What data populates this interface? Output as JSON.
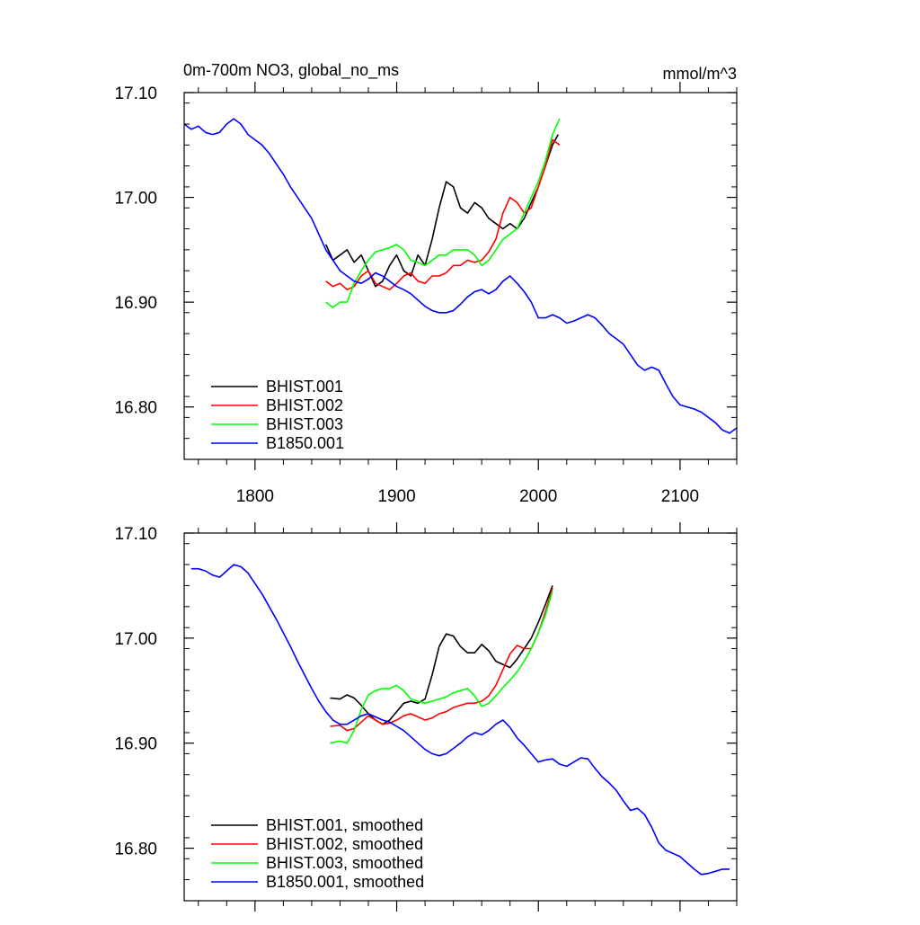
{
  "chart_data": [
    {
      "type": "line",
      "title": "0m-700m NO3, global_no_ms",
      "units": "mmol/m^3",
      "xlim": [
        1750,
        2140
      ],
      "ylim": [
        16.75,
        17.1
      ],
      "x_ticks": [
        1800,
        1900,
        2000,
        2100
      ],
      "x_tick_labels": [
        "1800",
        "1900",
        "2000",
        "2100"
      ],
      "y_ticks": [
        16.8,
        16.9,
        17.0,
        17.1
      ],
      "y_tick_labels": [
        "16.80",
        "16.90",
        "17.00",
        "17.10"
      ],
      "legend_position": "bottom-left",
      "series": [
        {
          "name": "BHIST.001",
          "color": "#000000",
          "x": [
            1850,
            1855,
            1860,
            1865,
            1870,
            1875,
            1880,
            1885,
            1890,
            1895,
            1900,
            1905,
            1910,
            1915,
            1920,
            1925,
            1930,
            1935,
            1940,
            1945,
            1950,
            1955,
            1960,
            1965,
            1970,
            1975,
            1980,
            1985,
            1990,
            1995,
            2000,
            2005,
            2010,
            2014
          ],
          "y": [
            16.955,
            16.94,
            16.945,
            16.95,
            16.938,
            16.945,
            16.93,
            16.915,
            16.92,
            16.935,
            16.945,
            16.93,
            16.925,
            16.945,
            16.935,
            16.96,
            16.99,
            17.015,
            17.01,
            16.99,
            16.985,
            16.995,
            16.99,
            16.98,
            16.975,
            16.97,
            16.975,
            16.97,
            16.98,
            16.995,
            17.01,
            17.03,
            17.05,
            17.06
          ]
        },
        {
          "name": "BHIST.002",
          "color": "#ff0000",
          "x": [
            1850,
            1855,
            1860,
            1865,
            1870,
            1875,
            1880,
            1885,
            1890,
            1895,
            1900,
            1905,
            1910,
            1915,
            1920,
            1925,
            1930,
            1935,
            1940,
            1945,
            1950,
            1955,
            1960,
            1965,
            1970,
            1975,
            1980,
            1985,
            1990,
            1995,
            2000,
            2005,
            2010,
            2015
          ],
          "y": [
            16.92,
            16.915,
            16.918,
            16.912,
            16.915,
            16.925,
            16.93,
            16.918,
            16.915,
            16.912,
            16.918,
            16.925,
            16.928,
            16.92,
            16.918,
            16.925,
            16.925,
            16.928,
            16.935,
            16.935,
            16.94,
            16.938,
            16.94,
            16.948,
            16.96,
            16.985,
            17.0,
            16.995,
            16.985,
            16.99,
            17.01,
            17.03,
            17.055,
            17.05
          ]
        },
        {
          "name": "BHIST.003",
          "color": "#00ff00",
          "x": [
            1850,
            1855,
            1860,
            1865,
            1870,
            1875,
            1880,
            1885,
            1890,
            1895,
            1900,
            1905,
            1910,
            1915,
            1920,
            1925,
            1930,
            1935,
            1940,
            1945,
            1950,
            1955,
            1960,
            1965,
            1970,
            1975,
            1980,
            1985,
            1990,
            1995,
            2000,
            2005,
            2010,
            2015
          ],
          "y": [
            16.9,
            16.895,
            16.9,
            16.9,
            16.918,
            16.93,
            16.94,
            16.948,
            16.95,
            16.952,
            16.955,
            16.95,
            16.94,
            16.938,
            16.935,
            16.94,
            16.945,
            16.945,
            16.95,
            16.95,
            16.95,
            16.945,
            16.935,
            16.94,
            16.95,
            16.96,
            16.965,
            16.97,
            16.985,
            17.0,
            17.015,
            17.035,
            17.06,
            17.075
          ]
        },
        {
          "name": "B1850.001",
          "color": "#0000ff",
          "x": [
            1750,
            1755,
            1760,
            1765,
            1770,
            1775,
            1780,
            1785,
            1790,
            1795,
            1800,
            1805,
            1810,
            1815,
            1820,
            1825,
            1830,
            1835,
            1840,
            1845,
            1850,
            1855,
            1860,
            1865,
            1870,
            1875,
            1880,
            1885,
            1890,
            1895,
            1900,
            1905,
            1910,
            1915,
            1920,
            1925,
            1930,
            1935,
            1940,
            1945,
            1950,
            1955,
            1960,
            1965,
            1970,
            1975,
            1980,
            1985,
            1990,
            1995,
            2000,
            2005,
            2010,
            2015,
            2020,
            2025,
            2030,
            2035,
            2040,
            2045,
            2050,
            2055,
            2060,
            2065,
            2070,
            2075,
            2080,
            2085,
            2090,
            2095,
            2100,
            2105,
            2110,
            2115,
            2120,
            2125,
            2130,
            2135,
            2140
          ],
          "y": [
            17.07,
            17.065,
            17.068,
            17.062,
            17.06,
            17.062,
            17.07,
            17.075,
            17.07,
            17.06,
            17.055,
            17.05,
            17.042,
            17.032,
            17.022,
            17.01,
            17.0,
            16.99,
            16.98,
            16.965,
            16.95,
            16.94,
            16.93,
            16.925,
            16.92,
            16.918,
            16.922,
            16.928,
            16.925,
            16.92,
            16.915,
            16.912,
            16.908,
            16.902,
            16.896,
            16.892,
            16.89,
            16.89,
            16.892,
            16.898,
            16.905,
            16.91,
            16.912,
            16.908,
            16.912,
            16.92,
            16.925,
            16.918,
            16.91,
            16.9,
            16.885,
            16.885,
            16.888,
            16.885,
            16.88,
            16.882,
            16.885,
            16.888,
            16.885,
            16.878,
            16.87,
            16.865,
            16.86,
            16.85,
            16.84,
            16.835,
            16.838,
            16.835,
            16.822,
            16.81,
            16.802,
            16.8,
            16.798,
            16.795,
            16.79,
            16.785,
            16.778,
            16.775,
            16.78
          ]
        }
      ]
    },
    {
      "type": "line",
      "title": "",
      "units": "",
      "xlim": [
        1750,
        2140
      ],
      "ylim": [
        16.75,
        17.1
      ],
      "x_ticks": [
        1800,
        1900,
        2000,
        2100
      ],
      "x_tick_labels": [],
      "y_ticks": [
        16.8,
        16.9,
        17.0,
        17.1
      ],
      "y_tick_labels": [
        "16.80",
        "16.90",
        "17.00",
        "17.10"
      ],
      "legend_position": "bottom-left",
      "series": [
        {
          "name": "BHIST.001, smoothed",
          "color": "#000000",
          "x": [
            1853,
            1860,
            1865,
            1870,
            1875,
            1880,
            1885,
            1890,
            1895,
            1900,
            1905,
            1910,
            1915,
            1920,
            1925,
            1930,
            1935,
            1940,
            1945,
            1950,
            1955,
            1960,
            1965,
            1970,
            1975,
            1980,
            1985,
            1990,
            1995,
            2000,
            2005,
            2010
          ],
          "y": [
            16.943,
            16.942,
            16.946,
            16.943,
            16.936,
            16.928,
            16.922,
            16.918,
            16.922,
            16.93,
            16.938,
            16.94,
            16.938,
            16.942,
            16.965,
            16.992,
            17.004,
            17.002,
            16.992,
            16.986,
            16.986,
            16.994,
            16.988,
            16.978,
            16.975,
            16.972,
            16.98,
            16.99,
            17.0,
            17.015,
            17.032,
            17.05
          ]
        },
        {
          "name": "BHIST.002, smoothed",
          "color": "#ff0000",
          "x": [
            1853,
            1860,
            1865,
            1870,
            1875,
            1880,
            1885,
            1890,
            1895,
            1900,
            1905,
            1910,
            1915,
            1920,
            1925,
            1930,
            1935,
            1940,
            1945,
            1950,
            1955,
            1960,
            1965,
            1970,
            1975,
            1980,
            1985,
            1990,
            1995,
            2000,
            2005,
            2010
          ],
          "y": [
            16.916,
            16.917,
            16.912,
            16.914,
            16.92,
            16.926,
            16.922,
            16.918,
            16.919,
            16.922,
            16.926,
            16.928,
            16.925,
            16.922,
            16.924,
            16.928,
            16.93,
            16.934,
            16.936,
            16.938,
            16.938,
            16.94,
            16.945,
            16.955,
            16.97,
            16.985,
            16.993,
            16.99,
            16.99,
            17.005,
            17.025,
            17.048
          ]
        },
        {
          "name": "BHIST.003, smoothed",
          "color": "#00ff00",
          "x": [
            1853,
            1860,
            1865,
            1870,
            1875,
            1880,
            1885,
            1890,
            1895,
            1900,
            1905,
            1910,
            1915,
            1920,
            1925,
            1930,
            1935,
            1940,
            1945,
            1950,
            1955,
            1960,
            1965,
            1970,
            1975,
            1980,
            1985,
            1990,
            1995,
            2000,
            2005,
            2010
          ],
          "y": [
            16.9,
            16.902,
            16.9,
            16.912,
            16.932,
            16.946,
            16.95,
            16.952,
            16.952,
            16.955,
            16.95,
            16.942,
            16.94,
            16.938,
            16.94,
            16.942,
            16.944,
            16.948,
            16.95,
            16.952,
            16.945,
            16.935,
            16.938,
            16.945,
            16.953,
            16.96,
            16.968,
            16.978,
            16.99,
            17.005,
            17.022,
            17.045
          ]
        },
        {
          "name": "B1850.001, smoothed",
          "color": "#0000ff",
          "x": [
            1755,
            1760,
            1765,
            1770,
            1775,
            1780,
            1785,
            1790,
            1795,
            1800,
            1805,
            1810,
            1815,
            1820,
            1825,
            1830,
            1835,
            1840,
            1845,
            1850,
            1855,
            1860,
            1865,
            1870,
            1875,
            1880,
            1885,
            1890,
            1895,
            1900,
            1905,
            1910,
            1915,
            1920,
            1925,
            1930,
            1935,
            1940,
            1945,
            1950,
            1955,
            1960,
            1965,
            1970,
            1975,
            1980,
            1985,
            1990,
            1995,
            2000,
            2005,
            2010,
            2015,
            2020,
            2025,
            2030,
            2035,
            2040,
            2045,
            2050,
            2055,
            2060,
            2065,
            2070,
            2075,
            2080,
            2085,
            2090,
            2095,
            2100,
            2105,
            2110,
            2115,
            2120,
            2125,
            2130,
            2135
          ],
          "y": [
            17.066,
            17.066,
            17.064,
            17.06,
            17.058,
            17.064,
            17.07,
            17.068,
            17.062,
            17.052,
            17.042,
            17.03,
            17.018,
            17.005,
            16.992,
            16.978,
            16.965,
            16.952,
            16.94,
            16.93,
            16.922,
            16.918,
            16.918,
            16.922,
            16.926,
            16.928,
            16.925,
            16.922,
            16.92,
            16.916,
            16.912,
            16.906,
            16.9,
            16.894,
            16.89,
            16.888,
            16.89,
            16.895,
            16.9,
            16.906,
            16.91,
            16.908,
            16.912,
            16.918,
            16.922,
            16.915,
            16.905,
            16.898,
            16.89,
            16.882,
            16.884,
            16.885,
            16.88,
            16.878,
            16.882,
            16.886,
            16.885,
            16.876,
            16.868,
            16.862,
            16.855,
            16.845,
            16.836,
            16.838,
            16.832,
            16.82,
            16.805,
            16.798,
            16.795,
            16.792,
            16.786,
            16.78,
            16.775,
            16.776,
            16.778,
            16.78,
            16.78
          ]
        }
      ]
    }
  ]
}
